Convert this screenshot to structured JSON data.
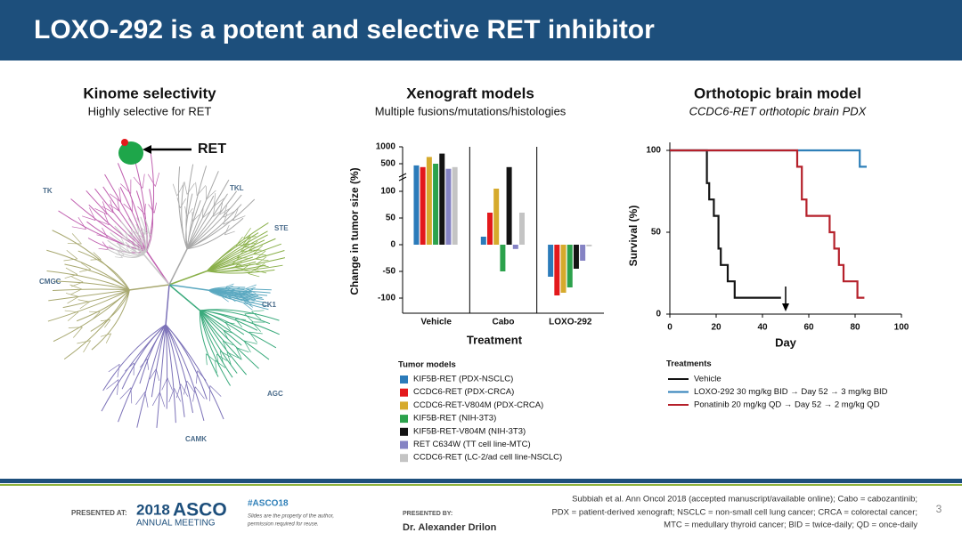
{
  "header": {
    "title": "LOXO-292 is a potent and selective RET inhibitor"
  },
  "panels": [
    {
      "title": "Kinome selectivity",
      "subtitle": "Highly selective for RET"
    },
    {
      "title": "Xenograft models",
      "subtitle": "Multiple fusions/mutations/histologies"
    },
    {
      "title": "Orthotopic brain model",
      "subtitle": "CCDC6-RET orthotopic brain PDX"
    }
  ],
  "kinome": {
    "target": "RET",
    "groups": [
      "TK",
      "TKL",
      "STE",
      "CMGC",
      "CK1",
      "AGC",
      "CAMK"
    ]
  },
  "chart_data": [
    {
      "type": "bar",
      "ylabel": "Change in tumor size (%)",
      "xlabel": "Treatment",
      "legend_title": "Tumor models",
      "categories": [
        "Vehicle",
        "Cabo",
        "LOXO-292"
      ],
      "series": [
        {
          "name": "KIF5B-RET (PDX-NSCLC)",
          "color": "#2b7bba",
          "values": [
            450,
            15,
            -60
          ]
        },
        {
          "name": "CCDC6-RET (PDX-CRCA)",
          "color": "#e3191c",
          "values": [
            400,
            60,
            -95
          ]
        },
        {
          "name": "CCDC6-RET-V804M (PDX-CRCA)",
          "color": "#d6aa2c",
          "values": [
            700,
            105,
            -90
          ]
        },
        {
          "name": "KIF5B-RET (NIH-3T3)",
          "color": "#2ca24c",
          "values": [
            500,
            -50,
            -80
          ]
        },
        {
          "name": "KIF5B-RET-V804M (NIH-3T3)",
          "color": "#141414",
          "values": [
            800,
            400,
            -45
          ]
        },
        {
          "name": "RET C634W (TT cell line-MTC)",
          "color": "#8583c4",
          "values": [
            350,
            -8,
            -30
          ]
        },
        {
          "name": "CCDC6-RET (LC-2/ad cell line-NSCLC)",
          "color": "#c4c4c4",
          "values": [
            400,
            60,
            -3
          ]
        }
      ],
      "ylim": [
        -120,
        1000
      ],
      "yticks": [
        1000,
        500,
        100,
        50,
        0,
        -50,
        -100
      ]
    },
    {
      "type": "line",
      "ylabel": "Survival (%)",
      "xlabel": "Day",
      "legend_title": "Treatments",
      "series": [
        {
          "name": "Vehicle",
          "color": "#141414",
          "x": [
            0,
            16,
            16,
            17,
            17,
            19,
            19,
            21,
            21,
            22,
            22,
            25,
            25,
            28,
            28,
            30,
            30,
            48
          ],
          "values": [
            100,
            100,
            80,
            80,
            70,
            70,
            60,
            60,
            40,
            40,
            30,
            30,
            20,
            20,
            10,
            10,
            10,
            10
          ]
        },
        {
          "name": "LOXO-292 30 mg/kg BID → Day 52 → 3 mg/kg BID",
          "color": "#2e7fb8",
          "x": [
            0,
            82,
            82,
            85
          ],
          "values": [
            100,
            100,
            90,
            90
          ]
        },
        {
          "name": "Ponatinib 20 mg/kg QD → Day 52 → 2 mg/kg QD",
          "color": "#b5202a",
          "x": [
            0,
            55,
            55,
            57,
            57,
            59,
            59,
            69,
            69,
            71,
            71,
            73,
            73,
            75,
            75,
            81,
            81,
            84
          ],
          "values": [
            100,
            100,
            90,
            90,
            70,
            70,
            60,
            60,
            50,
            50,
            40,
            40,
            30,
            30,
            20,
            20,
            10,
            10
          ]
        }
      ],
      "xlim": [
        0,
        100
      ],
      "xticks": [
        0,
        20,
        40,
        60,
        80,
        100
      ],
      "ylim": [
        0,
        100
      ],
      "yticks": [
        0,
        50,
        100
      ]
    }
  ],
  "footer": {
    "presented_at": "PRESENTED AT:",
    "meeting_year": "2018",
    "meeting_name": "ASCO",
    "meeting_sub": "ANNUAL MEETING",
    "hashtag": "#ASCO18",
    "notice": [
      "Slides are the property of the author,",
      "permission required for reuse."
    ],
    "presented_by": "PRESENTED BY:",
    "presenter": "Dr. Alexander Drilon",
    "citation": [
      "Subbiah et al. Ann Oncol 2018 (accepted manuscript/available online); Cabo = cabozantinib;",
      "PDX = patient-derived xenograft; NSCLC = non-small cell lung cancer; CRCA = colorectal cancer;",
      "MTC = medullary thyroid cancer; BID = twice-daily; QD = once-daily"
    ],
    "page": "3"
  }
}
